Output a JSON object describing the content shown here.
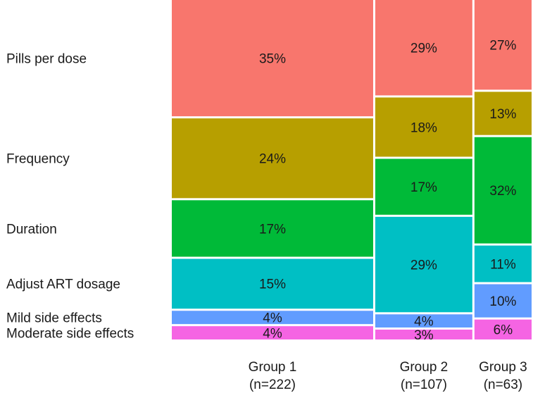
{
  "chart_data": {
    "type": "mosaic",
    "title": "",
    "xlabel": "",
    "ylabel": "",
    "row_labels": [
      "Pills per dose",
      "Frequency",
      "Duration",
      "Adjust ART dosage",
      "Mild side effects",
      "Moderate side effects"
    ],
    "columns": [
      {
        "label_line1": "Group 1",
        "label_line2": "(n=222)",
        "n": 222,
        "values": [
          35,
          24,
          17,
          15,
          4,
          4
        ],
        "labels": [
          "35%",
          "24%",
          "17%",
          "15%",
          "4%",
          "4%"
        ]
      },
      {
        "label_line1": "Group 2",
        "label_line2": "(n=107)",
        "n": 107,
        "values": [
          29,
          18,
          17,
          29,
          4,
          3
        ],
        "labels": [
          "29%",
          "18%",
          "17%",
          "29%",
          "4%",
          "3%"
        ]
      },
      {
        "label_line1": "Group 3",
        "label_line2": "(n=63)",
        "n": 63,
        "values": [
          27,
          13,
          32,
          11,
          10,
          6
        ],
        "labels": [
          "27%",
          "13%",
          "32%",
          "11%",
          "10%",
          "6%"
        ]
      }
    ],
    "colors": [
      "#F8766D",
      "#B79F00",
      "#00BA38",
      "#00BFC4",
      "#619CFF",
      "#F564E3"
    ],
    "legend": "none",
    "grid": false
  }
}
